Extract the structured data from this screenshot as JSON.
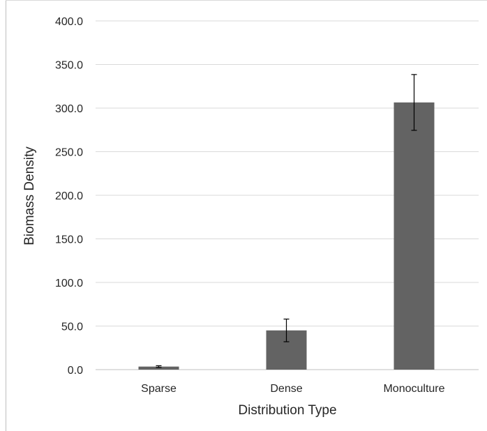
{
  "chart_data": {
    "type": "bar",
    "title": "",
    "xlabel": "Distribution Type",
    "ylabel": "Biomass Density",
    "categories": [
      "Sparse",
      "Dense",
      "Monoculture"
    ],
    "values": [
      3.5,
      45.0,
      306.5
    ],
    "error": [
      1.0,
      13.0,
      32.0
    ],
    "ylim": [
      0,
      400
    ],
    "yticks": [
      "0.0",
      "50.0",
      "100.0",
      "150.0",
      "200.0",
      "250.0",
      "300.0",
      "350.0",
      "400.0"
    ],
    "ytick_values": [
      0,
      50,
      100,
      150,
      200,
      250,
      300,
      350,
      400
    ],
    "grid": true,
    "legend": "none",
    "bar_color": "#636363",
    "gridline_color": "#d9d9d9",
    "errorbar_color": "#000000"
  }
}
